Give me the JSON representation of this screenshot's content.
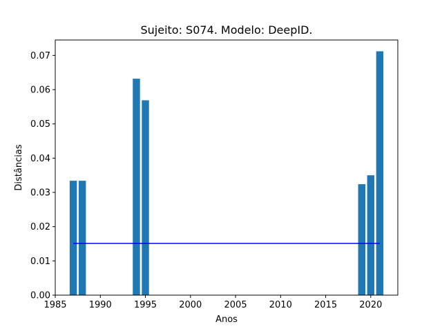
{
  "chart_data": {
    "type": "bar",
    "title": "Sujeito: S074. Modelo: DeepID.",
    "xlabel": "Anos",
    "ylabel": "Distâncias",
    "xlim": [
      1985,
      2023
    ],
    "ylim": [
      0.0,
      0.0745
    ],
    "xticks": [
      1985,
      1990,
      1995,
      2000,
      2005,
      2010,
      2015,
      2020
    ],
    "xtick_labels": [
      "1985",
      "1990",
      "1995",
      "2000",
      "2005",
      "2010",
      "2015",
      "2020"
    ],
    "yticks": [
      0.0,
      0.01,
      0.02,
      0.03,
      0.04,
      0.05,
      0.06,
      0.07
    ],
    "ytick_labels": [
      "0.00",
      "0.01",
      "0.02",
      "0.03",
      "0.04",
      "0.05",
      "0.06",
      "0.07"
    ],
    "bar_width": 0.8,
    "bar_color": "#1f77b4",
    "bars": [
      {
        "x": 1987,
        "y": 0.0334
      },
      {
        "x": 1988,
        "y": 0.0334
      },
      {
        "x": 1994,
        "y": 0.0632
      },
      {
        "x": 1995,
        "y": 0.0569
      },
      {
        "x": 2019,
        "y": 0.0324
      },
      {
        "x": 2020,
        "y": 0.035
      },
      {
        "x": 2021,
        "y": 0.0712
      }
    ],
    "threshold_line": {
      "x": [
        1987,
        2021
      ],
      "y": 0.0151,
      "color": "#0000ff"
    },
    "grid": false,
    "legend": "none"
  }
}
